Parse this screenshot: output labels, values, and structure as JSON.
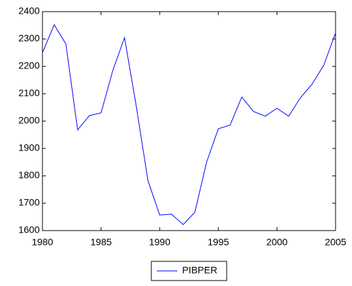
{
  "chart_data": {
    "type": "line",
    "x": [
      1980,
      1981,
      1982,
      1983,
      1984,
      1985,
      1986,
      1987,
      1988,
      1989,
      1990,
      1991,
      1992,
      1993,
      1994,
      1995,
      1996,
      1997,
      1998,
      1999,
      2000,
      2001,
      2002,
      2003,
      2004,
      2005
    ],
    "series": [
      {
        "name": "PIBPER",
        "color": "#0000ff",
        "values": [
          2250,
          2352,
          2282,
          1968,
          2020,
          2030,
          2185,
          2305,
          2055,
          1782,
          1657,
          1660,
          1622,
          1667,
          1850,
          1972,
          1985,
          2088,
          2035,
          2018,
          2047,
          2018,
          2085,
          2135,
          2205,
          2322
        ]
      }
    ],
    "xlim": [
      1980,
      2005
    ],
    "xticks": [
      1980,
      1985,
      1990,
      1995,
      2000,
      2005
    ],
    "ylim": [
      1600,
      2400
    ],
    "yticks": [
      1600,
      1700,
      1800,
      1900,
      2000,
      2100,
      2200,
      2300,
      2400
    ],
    "grid": false,
    "legend": "bottom"
  }
}
